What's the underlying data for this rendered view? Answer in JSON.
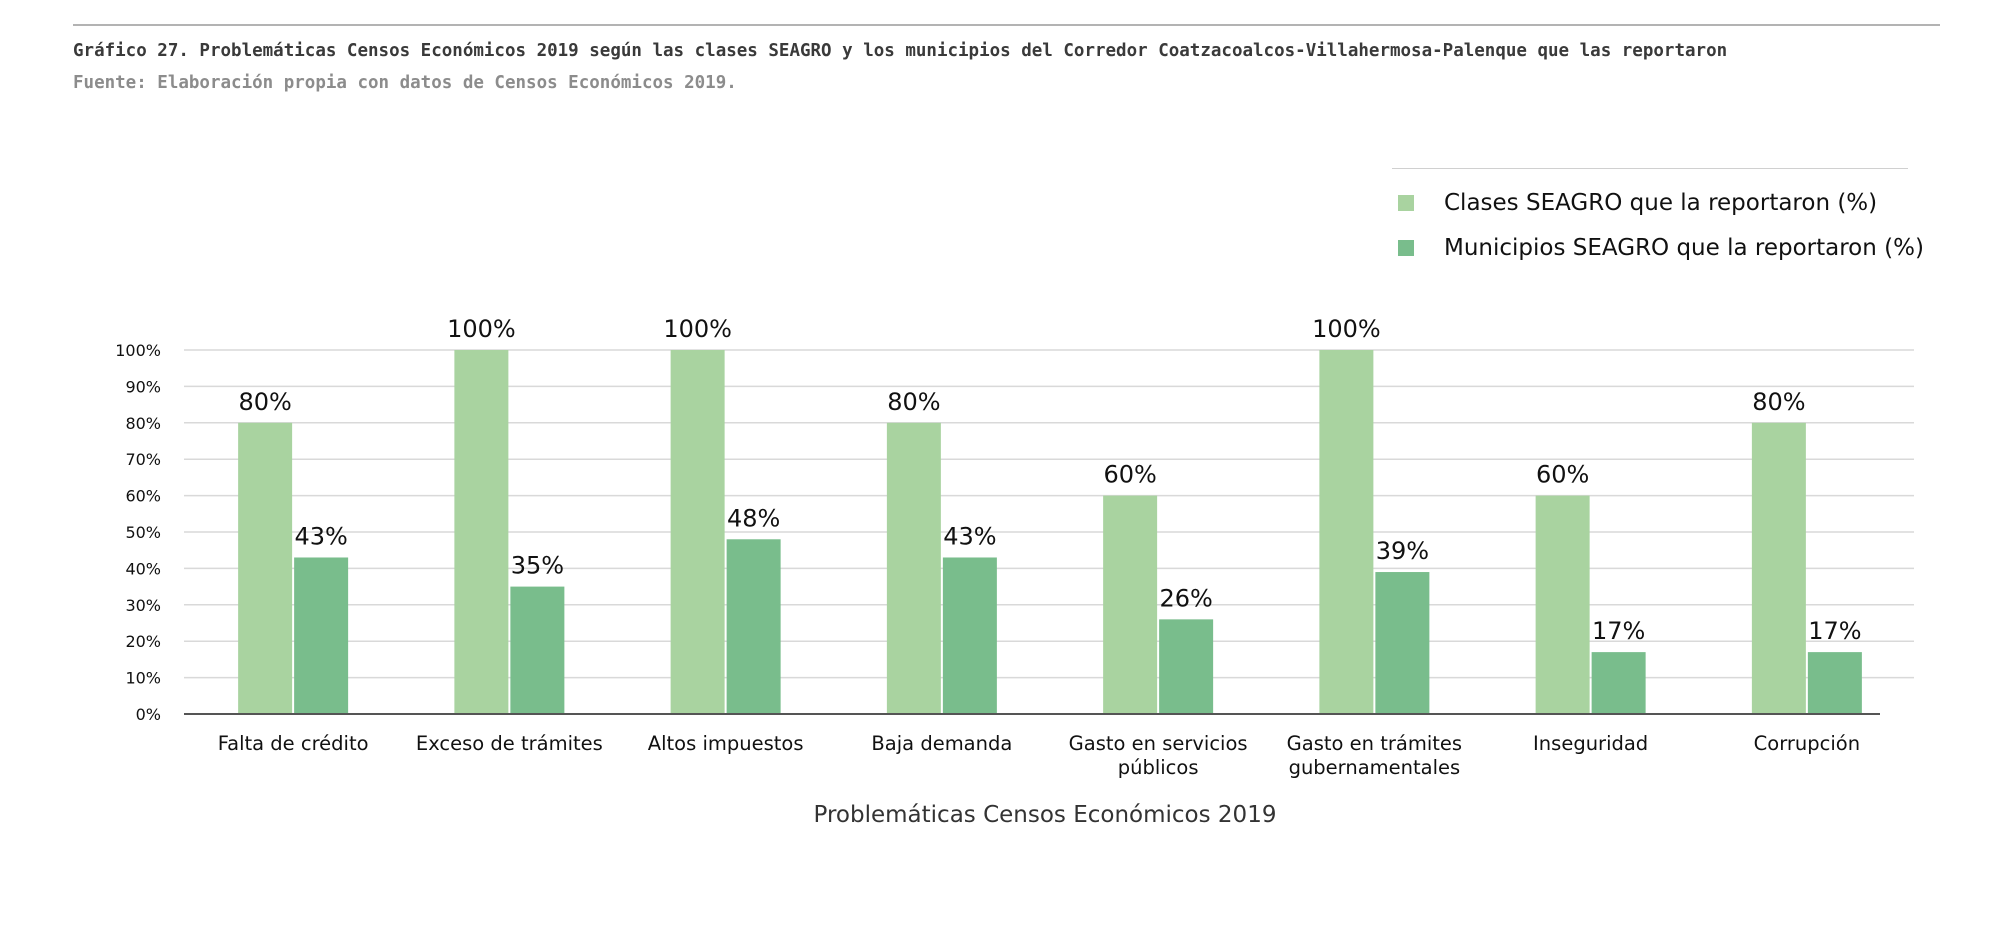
{
  "header": {
    "caption": "Gráfico 27. Problemáticas Censos Económicos 2019 según las clases SEAGRO y los municipios del Corredor Coatzacoalcos-Villahermosa-Palenque que las reportaron",
    "source": "Fuente: Elaboración propia con datos de Censos Económicos 2019."
  },
  "chart_data": {
    "type": "bar",
    "xlabel": "Problemáticas Censos Económicos 2019",
    "ylabel": "",
    "ylim": [
      0,
      100
    ],
    "yticks": [
      "0%",
      "10%",
      "20%",
      "30%",
      "40%",
      "50%",
      "60%",
      "70%",
      "80%",
      "90%",
      "100%"
    ],
    "grid": true,
    "legend_position": "top-right",
    "categories": [
      [
        "Falta  de crédito"
      ],
      [
        "Exceso de trámites"
      ],
      [
        "Altos impuestos"
      ],
      [
        "Baja  demanda"
      ],
      [
        "Gasto en servicios",
        "públicos"
      ],
      [
        "Gasto en trámites",
        "gubernamentales"
      ],
      [
        "Inseguridad"
      ],
      [
        "Corrupción"
      ]
    ],
    "series": [
      {
        "name": "Clases SEAGRO que la reportaron (%)",
        "color": "#a9d3a0",
        "values": [
          80,
          100,
          100,
          80,
          60,
          100,
          60,
          80
        ],
        "labels": [
          "80%",
          "100%",
          "100%",
          "80%",
          "60%",
          "100%",
          "60%",
          "80%"
        ]
      },
      {
        "name": "Municipios SEAGRO que la reportaron (%)",
        "color": "#79bd8c",
        "values": [
          43,
          35,
          48,
          43,
          26,
          39,
          17,
          17
        ],
        "labels": [
          "43%",
          "35%",
          "48%",
          "43%",
          "26%",
          "39%",
          "17%",
          "17%"
        ]
      }
    ]
  }
}
